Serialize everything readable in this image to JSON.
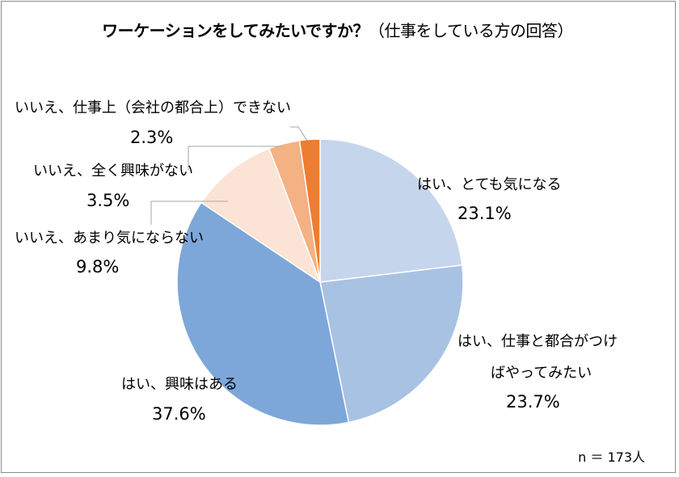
{
  "chart_data": {
    "type": "pie",
    "title": "ワーケーションをしてみたいですか？",
    "subtitle": "（仕事をしている方の回答）",
    "start_angle_deg": 0,
    "direction": "clockwise",
    "slices": [
      {
        "label": "はい、とても気になる",
        "value": 23.1,
        "value_label": "23.1%",
        "color": "#c5d5ec"
      },
      {
        "label_lines": [
          "はい、仕事と都合がつけ",
          "ばやってみたい"
        ],
        "value": 23.7,
        "value_label": "23.7%",
        "color": "#a8c2e3"
      },
      {
        "label": "はい、興味はある",
        "value": 37.6,
        "value_label": "37.6%",
        "color": "#7da7d9"
      },
      {
        "label": "いいえ、あまり気にならない",
        "value": 9.8,
        "value_label": "9.8%",
        "color": "#fbe4d5"
      },
      {
        "label": "いいえ、全く興味がない",
        "value": 3.5,
        "value_label": "3.5%",
        "color": "#f4b183"
      },
      {
        "label": "いいえ、仕事上（会社の都合上）できない",
        "value": 2.3,
        "value_label": "2.3%",
        "color": "#ed7d31"
      }
    ],
    "note": "n ＝ 173人"
  }
}
